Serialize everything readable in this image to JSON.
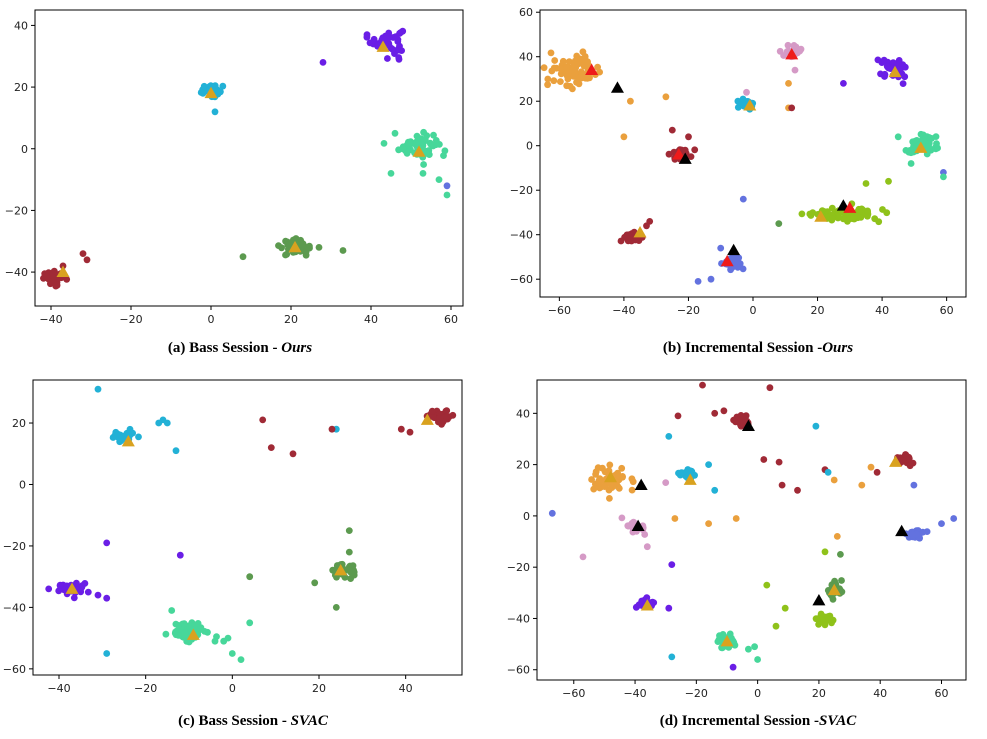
{
  "colors": {
    "purple": "#6a1ee6",
    "cyan": "#22b1d6",
    "mint": "#47d79a",
    "darkgreen": "#5c9a4f",
    "crimson": "#a02a36",
    "orange": "#eaa03d",
    "pink": "#d59ac6",
    "lime": "#8fc21a",
    "periwinkle": "#6372df",
    "marker_gold": "#d9a21f",
    "marker_red": "#ee1b1b",
    "marker_black": "#000000"
  },
  "chart_data": [
    {
      "type": "scatter",
      "caption": {
        "prefix": "(a) Bass Session - ",
        "emph": "Ours"
      },
      "xlim": [
        -44,
        63
      ],
      "ylim": [
        -51,
        45
      ],
      "xticks": [
        -40,
        -20,
        0,
        20,
        40,
        60
      ],
      "yticks": [
        -40,
        -20,
        0,
        20,
        40
      ],
      "clusters": [
        {
          "color": "purple",
          "x": 44,
          "y": 35,
          "sx": 2,
          "sy": 2,
          "n": 45
        },
        {
          "color": "cyan",
          "x": 0,
          "y": 19,
          "sx": 1.4,
          "sy": 1,
          "n": 28
        },
        {
          "color": "mint",
          "x": 52,
          "y": 1,
          "sx": 2.5,
          "sy": 2,
          "n": 60
        },
        {
          "color": "darkgreen",
          "x": 21,
          "y": -32,
          "sx": 2,
          "sy": 1.3,
          "n": 35
        },
        {
          "color": "crimson",
          "x": -39,
          "y": -42,
          "sx": 1.4,
          "sy": 1,
          "n": 45
        }
      ],
      "outliers": [
        {
          "color": "purple",
          "x": 28,
          "y": 28
        },
        {
          "color": "purple",
          "x": 39,
          "y": 37
        },
        {
          "color": "purple",
          "x": 47,
          "y": 32
        },
        {
          "color": "purple",
          "x": 47,
          "y": 29
        },
        {
          "color": "cyan",
          "x": 1,
          "y": 12
        },
        {
          "color": "cyan",
          "x": -2,
          "y": 18
        },
        {
          "color": "mint",
          "x": 45,
          "y": -8
        },
        {
          "color": "mint",
          "x": 46,
          "y": 5
        },
        {
          "color": "mint",
          "x": 57,
          "y": -10
        },
        {
          "color": "mint",
          "x": 59,
          "y": -15
        },
        {
          "color": "mint",
          "x": 53,
          "y": -8
        },
        {
          "color": "periwinkle",
          "x": 59,
          "y": -12
        },
        {
          "color": "darkgreen",
          "x": 8,
          "y": -35
        },
        {
          "color": "darkgreen",
          "x": 33,
          "y": -33
        },
        {
          "color": "darkgreen",
          "x": 27,
          "y": -32
        },
        {
          "color": "crimson",
          "x": -32,
          "y": -34
        },
        {
          "color": "crimson",
          "x": -31,
          "y": -36
        },
        {
          "color": "crimson",
          "x": -37,
          "y": -38
        }
      ],
      "markers": [
        {
          "color": "marker_gold",
          "x": 43,
          "y": 33
        },
        {
          "color": "marker_gold",
          "x": 0,
          "y": 18
        },
        {
          "color": "marker_gold",
          "x": 52,
          "y": -1
        },
        {
          "color": "marker_gold",
          "x": 21,
          "y": -32
        },
        {
          "color": "marker_gold",
          "x": -37,
          "y": -40
        }
      ]
    },
    {
      "type": "scatter",
      "caption": {
        "prefix": "(b) Incremental Session -",
        "emph": "Ours"
      },
      "xlim": [
        -66,
        66
      ],
      "ylim": [
        -68,
        61
      ],
      "xticks": [
        -60,
        -40,
        -20,
        0,
        20,
        40,
        60
      ],
      "yticks": [
        -60,
        -40,
        -20,
        0,
        20,
        40,
        60
      ],
      "clusters": [
        {
          "color": "orange",
          "x": -55,
          "y": 34,
          "sx": 4,
          "sy": 3.5,
          "n": 70
        },
        {
          "color": "pink",
          "x": 12,
          "y": 42,
          "sx": 1.5,
          "sy": 1.5,
          "n": 30
        },
        {
          "color": "purple",
          "x": 44,
          "y": 35,
          "sx": 2,
          "sy": 2,
          "n": 40
        },
        {
          "color": "cyan",
          "x": -2,
          "y": 19,
          "sx": 1.5,
          "sy": 1,
          "n": 28
        },
        {
          "color": "crimson",
          "x": -22,
          "y": -4,
          "sx": 1.3,
          "sy": 1.3,
          "n": 25
        },
        {
          "color": "crimson",
          "x": -38,
          "y": -41,
          "sx": 1.5,
          "sy": 1.2,
          "n": 35
        },
        {
          "color": "mint",
          "x": 52,
          "y": 0,
          "sx": 2.5,
          "sy": 2.5,
          "n": 50
        },
        {
          "color": "lime",
          "x": 27,
          "y": -31,
          "sx": 6,
          "sy": 1.5,
          "n": 80
        },
        {
          "color": "periwinkle",
          "x": -6,
          "y": -53,
          "sx": 1.5,
          "sy": 1.5,
          "n": 30
        }
      ],
      "outliers": [
        {
          "color": "orange",
          "x": -38,
          "y": 20
        },
        {
          "color": "orange",
          "x": -27,
          "y": 22
        },
        {
          "color": "orange",
          "x": -40,
          "y": 4
        },
        {
          "color": "pink",
          "x": 13,
          "y": 34
        },
        {
          "color": "pink",
          "x": -2,
          "y": 24
        },
        {
          "color": "orange",
          "x": 11,
          "y": 28
        },
        {
          "color": "orange",
          "x": 11,
          "y": 17
        },
        {
          "color": "crimson",
          "x": -25,
          "y": 7
        },
        {
          "color": "crimson",
          "x": -20,
          "y": 4
        },
        {
          "color": "crimson",
          "x": -32,
          "y": -34
        },
        {
          "color": "crimson",
          "x": -33,
          "y": -36
        },
        {
          "color": "crimson",
          "x": 12,
          "y": 17
        },
        {
          "color": "periwinkle",
          "x": -17,
          "y": -61
        },
        {
          "color": "periwinkle",
          "x": -13,
          "y": -60
        },
        {
          "color": "periwinkle",
          "x": -3,
          "y": -24
        },
        {
          "color": "periwinkle",
          "x": -10,
          "y": -46
        },
        {
          "color": "periwinkle",
          "x": 59,
          "y": -12
        },
        {
          "color": "purple",
          "x": 28,
          "y": 28
        },
        {
          "color": "purple",
          "x": 47,
          "y": 31
        },
        {
          "color": "darkgreen",
          "x": 8,
          "y": -35
        },
        {
          "color": "lime",
          "x": 42,
          "y": -16
        },
        {
          "color": "lime",
          "x": 35,
          "y": -17
        },
        {
          "color": "mint",
          "x": 45,
          "y": 4
        },
        {
          "color": "mint",
          "x": 49,
          "y": -8
        },
        {
          "color": "mint",
          "x": 59,
          "y": -14
        }
      ],
      "markers": [
        {
          "color": "marker_red",
          "x": -50,
          "y": 34
        },
        {
          "color": "marker_black",
          "x": -42,
          "y": 26
        },
        {
          "color": "marker_red",
          "x": 12,
          "y": 41
        },
        {
          "color": "marker_gold",
          "x": 44,
          "y": 33
        },
        {
          "color": "marker_gold",
          "x": -1,
          "y": 18
        },
        {
          "color": "marker_red",
          "x": -23,
          "y": -4
        },
        {
          "color": "marker_black",
          "x": -21,
          "y": -6
        },
        {
          "color": "marker_gold",
          "x": -35,
          "y": -39
        },
        {
          "color": "marker_gold",
          "x": 52,
          "y": -1
        },
        {
          "color": "marker_black",
          "x": 28,
          "y": -27
        },
        {
          "color": "marker_red",
          "x": 30,
          "y": -28
        },
        {
          "color": "marker_gold",
          "x": 21,
          "y": -32
        },
        {
          "color": "marker_black",
          "x": -6,
          "y": -47
        },
        {
          "color": "marker_red",
          "x": -8,
          "y": -52
        }
      ]
    },
    {
      "type": "scatter",
      "caption": {
        "prefix": "(c) Bass Session - ",
        "emph": "SVAC"
      },
      "xlim": [
        -46,
        53
      ],
      "ylim": [
        -62,
        34
      ],
      "xticks": [
        -40,
        -20,
        0,
        20,
        40
      ],
      "yticks": [
        -60,
        -40,
        -20,
        0,
        20
      ],
      "clusters": [
        {
          "color": "cyan",
          "x": -25,
          "y": 16,
          "sx": 1.5,
          "sy": 1,
          "n": 28
        },
        {
          "color": "crimson",
          "x": 48,
          "y": 22,
          "sx": 1.3,
          "sy": 1,
          "n": 40
        },
        {
          "color": "purple",
          "x": -37,
          "y": -34,
          "sx": 2,
          "sy": 0.9,
          "n": 40
        },
        {
          "color": "mint",
          "x": -10,
          "y": -48,
          "sx": 2.5,
          "sy": 1.5,
          "n": 55
        },
        {
          "color": "darkgreen",
          "x": 26,
          "y": -28,
          "sx": 1.5,
          "sy": 1.3,
          "n": 30
        }
      ],
      "outliers": [
        {
          "color": "cyan",
          "x": -31,
          "y": 31
        },
        {
          "color": "cyan",
          "x": -17,
          "y": 20
        },
        {
          "color": "cyan",
          "x": -16,
          "y": 21
        },
        {
          "color": "cyan",
          "x": -15,
          "y": 20
        },
        {
          "color": "cyan",
          "x": -13,
          "y": 11
        },
        {
          "color": "cyan",
          "x": 24,
          "y": 18
        },
        {
          "color": "cyan",
          "x": -29,
          "y": -55
        },
        {
          "color": "crimson",
          "x": 7,
          "y": 21
        },
        {
          "color": "crimson",
          "x": 9,
          "y": 12
        },
        {
          "color": "crimson",
          "x": 14,
          "y": 10
        },
        {
          "color": "crimson",
          "x": 23,
          "y": 18
        },
        {
          "color": "crimson",
          "x": 39,
          "y": 18
        },
        {
          "color": "crimson",
          "x": 41,
          "y": 17
        },
        {
          "color": "purple",
          "x": -29,
          "y": -19
        },
        {
          "color": "purple",
          "x": -12,
          "y": -23
        },
        {
          "color": "purple",
          "x": -31,
          "y": -36
        },
        {
          "color": "purple",
          "x": -29,
          "y": -37
        },
        {
          "color": "darkgreen",
          "x": 4,
          "y": -30
        },
        {
          "color": "darkgreen",
          "x": 27,
          "y": -15
        },
        {
          "color": "darkgreen",
          "x": 24,
          "y": -40
        },
        {
          "color": "darkgreen",
          "x": 19,
          "y": -32
        },
        {
          "color": "darkgreen",
          "x": 27,
          "y": -22
        },
        {
          "color": "mint",
          "x": -14,
          "y": -41
        },
        {
          "color": "mint",
          "x": -4,
          "y": -51
        },
        {
          "color": "mint",
          "x": -2,
          "y": -51
        },
        {
          "color": "mint",
          "x": 0,
          "y": -55
        },
        {
          "color": "mint",
          "x": 2,
          "y": -57
        },
        {
          "color": "mint",
          "x": 4,
          "y": -45
        },
        {
          "color": "mint",
          "x": -1,
          "y": -50
        }
      ],
      "markers": [
        {
          "color": "marker_gold",
          "x": -24,
          "y": 14
        },
        {
          "color": "marker_gold",
          "x": 45,
          "y": 21
        },
        {
          "color": "marker_gold",
          "x": -37,
          "y": -34
        },
        {
          "color": "marker_gold",
          "x": -9,
          "y": -49
        },
        {
          "color": "marker_gold",
          "x": 25,
          "y": -28
        }
      ]
    },
    {
      "type": "scatter",
      "caption": {
        "prefix": "(d) Incremental Session -",
        "emph": "SVAC"
      },
      "xlim": [
        -72,
        68
      ],
      "ylim": [
        -64,
        53
      ],
      "xticks": [
        -60,
        -40,
        -20,
        0,
        20,
        40,
        60
      ],
      "yticks": [
        -60,
        -40,
        -20,
        0,
        20,
        40
      ],
      "clusters": [
        {
          "color": "orange",
          "x": -48,
          "y": 14,
          "sx": 3,
          "sy": 2.8,
          "n": 55
        },
        {
          "color": "crimson",
          "x": -5,
          "y": 37,
          "sx": 1.3,
          "sy": 1.3,
          "n": 25
        },
        {
          "color": "cyan",
          "x": -23,
          "y": 16,
          "sx": 1.5,
          "sy": 1.2,
          "n": 25
        },
        {
          "color": "crimson",
          "x": 48,
          "y": 22,
          "sx": 1.2,
          "sy": 1,
          "n": 25
        },
        {
          "color": "pink",
          "x": -40,
          "y": -4,
          "sx": 1.5,
          "sy": 1.5,
          "n": 30
        },
        {
          "color": "periwinkle",
          "x": 52,
          "y": -7,
          "sx": 1.5,
          "sy": 0.9,
          "n": 30
        },
        {
          "color": "purple",
          "x": -37,
          "y": -34,
          "sx": 1.5,
          "sy": 0.8,
          "n": 28
        },
        {
          "color": "mint",
          "x": -10,
          "y": -49,
          "sx": 2,
          "sy": 1.5,
          "n": 40
        },
        {
          "color": "darkgreen",
          "x": 25,
          "y": -29,
          "sx": 1.3,
          "sy": 1.8,
          "n": 25
        },
        {
          "color": "lime",
          "x": 22,
          "y": -40,
          "sx": 1.5,
          "sy": 1.3,
          "n": 25
        }
      ],
      "outliers": [
        {
          "color": "periwinkle",
          "x": -67,
          "y": 1
        },
        {
          "color": "pink",
          "x": -57,
          "y": -16
        },
        {
          "color": "pink",
          "x": -36,
          "y": -12
        },
        {
          "color": "pink",
          "x": -30,
          "y": 13
        },
        {
          "color": "crimson",
          "x": -18,
          "y": 51
        },
        {
          "color": "crimson",
          "x": -14,
          "y": 40
        },
        {
          "color": "crimson",
          "x": -11,
          "y": 41
        },
        {
          "color": "crimson",
          "x": 4,
          "y": 50
        },
        {
          "color": "crimson",
          "x": -26,
          "y": 39
        },
        {
          "color": "crimson",
          "x": 2,
          "y": 22
        },
        {
          "color": "crimson",
          "x": 7,
          "y": 21
        },
        {
          "color": "crimson",
          "x": 8,
          "y": 12
        },
        {
          "color": "crimson",
          "x": 13,
          "y": 10
        },
        {
          "color": "crimson",
          "x": 22,
          "y": 18
        },
        {
          "color": "crimson",
          "x": 39,
          "y": 17
        },
        {
          "color": "cyan",
          "x": -29,
          "y": 31
        },
        {
          "color": "cyan",
          "x": -16,
          "y": 20
        },
        {
          "color": "cyan",
          "x": -14,
          "y": 10
        },
        {
          "color": "cyan",
          "x": 19,
          "y": 35
        },
        {
          "color": "cyan",
          "x": -28,
          "y": -55
        },
        {
          "color": "cyan",
          "x": 23,
          "y": 17
        },
        {
          "color": "orange",
          "x": -27,
          "y": -1
        },
        {
          "color": "orange",
          "x": -16,
          "y": -3
        },
        {
          "color": "orange",
          "x": -7,
          "y": -1
        },
        {
          "color": "orange",
          "x": 25,
          "y": 14
        },
        {
          "color": "orange",
          "x": 34,
          "y": 12
        },
        {
          "color": "orange",
          "x": 37,
          "y": 19
        },
        {
          "color": "orange",
          "x": 26,
          "y": -8
        },
        {
          "color": "purple",
          "x": -28,
          "y": -19
        },
        {
          "color": "purple",
          "x": -8,
          "y": -59
        },
        {
          "color": "purple",
          "x": -29,
          "y": -36
        },
        {
          "color": "darkgreen",
          "x": 27,
          "y": -15
        },
        {
          "color": "lime",
          "x": 3,
          "y": -27
        },
        {
          "color": "lime",
          "x": 9,
          "y": -36
        },
        {
          "color": "lime",
          "x": 6,
          "y": -43
        },
        {
          "color": "lime",
          "x": 22,
          "y": -14
        },
        {
          "color": "mint",
          "x": -3,
          "y": -52
        },
        {
          "color": "mint",
          "x": 0,
          "y": -56
        },
        {
          "color": "mint",
          "x": -1,
          "y": -51
        },
        {
          "color": "periwinkle",
          "x": 60,
          "y": -3
        },
        {
          "color": "periwinkle",
          "x": 64,
          "y": -1
        },
        {
          "color": "periwinkle",
          "x": 51,
          "y": 12
        }
      ],
      "markers": [
        {
          "color": "marker_black",
          "x": -38,
          "y": 12
        },
        {
          "color": "marker_gold",
          "x": -48,
          "y": 15
        },
        {
          "color": "marker_black",
          "x": -3,
          "y": 35
        },
        {
          "color": "marker_gold",
          "x": -22,
          "y": 14
        },
        {
          "color": "marker_gold",
          "x": 45,
          "y": 21
        },
        {
          "color": "marker_black",
          "x": -39,
          "y": -4
        },
        {
          "color": "marker_black",
          "x": 47,
          "y": -6
        },
        {
          "color": "marker_gold",
          "x": -36,
          "y": -35
        },
        {
          "color": "marker_gold",
          "x": -10,
          "y": -49
        },
        {
          "color": "marker_black",
          "x": 20,
          "y": -33
        },
        {
          "color": "marker_gold",
          "x": 25,
          "y": -29
        }
      ]
    }
  ]
}
